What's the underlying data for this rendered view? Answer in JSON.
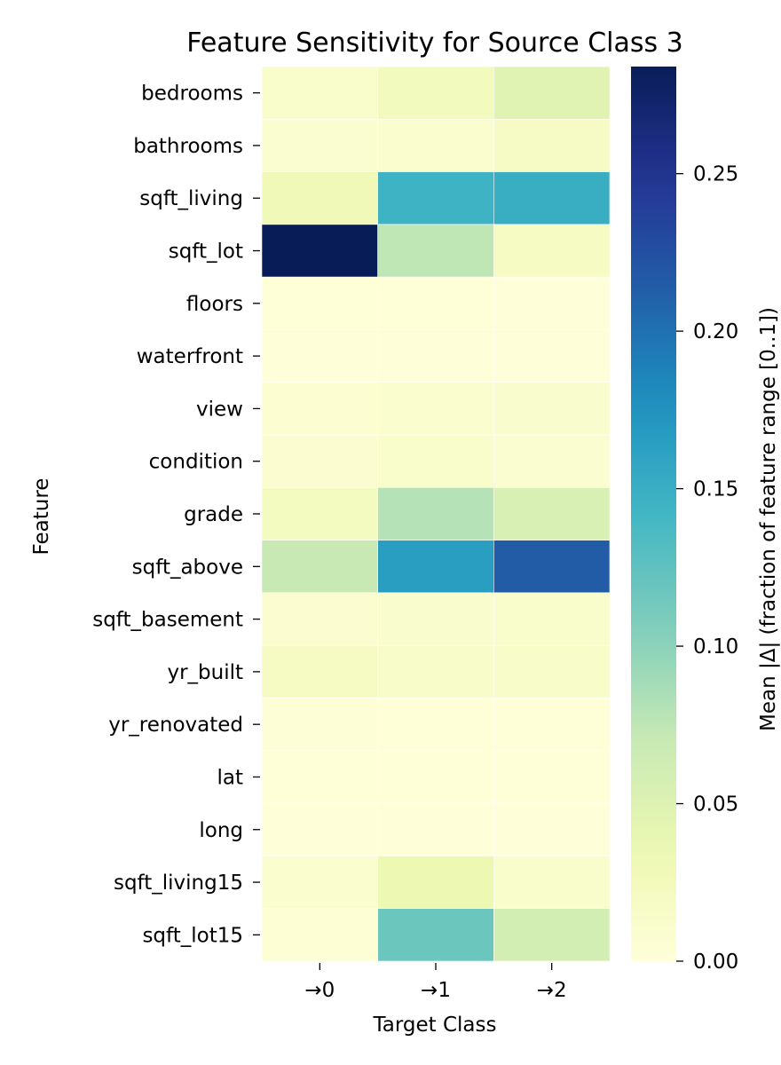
{
  "chart_data": {
    "type": "heatmap",
    "title": "Feature Sensitivity for Source Class 3",
    "xlabel": "Target Class",
    "ylabel": "Feature",
    "x_categories": [
      "→0",
      "→1",
      "→2"
    ],
    "y_categories": [
      "bedrooms",
      "bathrooms",
      "sqft_living",
      "sqft_lot",
      "floors",
      "waterfront",
      "view",
      "condition",
      "grade",
      "sqft_above",
      "sqft_basement",
      "yr_built",
      "yr_renovated",
      "lat",
      "long",
      "sqft_living15",
      "sqft_lot15"
    ],
    "values": [
      [
        0.012,
        0.025,
        0.048
      ],
      [
        0.009,
        0.01,
        0.018
      ],
      [
        0.03,
        0.145,
        0.15
      ],
      [
        0.284,
        0.075,
        0.02
      ],
      [
        0.002,
        0.002,
        0.001
      ],
      [
        0.001,
        0.001,
        0.001
      ],
      [
        0.006,
        0.01,
        0.011
      ],
      [
        0.008,
        0.012,
        0.009
      ],
      [
        0.022,
        0.08,
        0.055
      ],
      [
        0.07,
        0.165,
        0.215
      ],
      [
        0.008,
        0.011,
        0.012
      ],
      [
        0.02,
        0.015,
        0.015
      ],
      [
        0.003,
        0.002,
        0.002
      ],
      [
        0.002,
        0.002,
        0.002
      ],
      [
        0.001,
        0.001,
        0.001
      ],
      [
        0.01,
        0.035,
        0.012
      ],
      [
        0.004,
        0.118,
        0.06
      ]
    ],
    "colormap": "YlGnBu",
    "colorbar": {
      "label": "Mean |Δ| (fraction of feature range [0..1])",
      "range": [
        0,
        0.284
      ],
      "ticks": [
        "0.00",
        "0.05",
        "0.10",
        "0.15",
        "0.20",
        "0.25"
      ]
    }
  }
}
